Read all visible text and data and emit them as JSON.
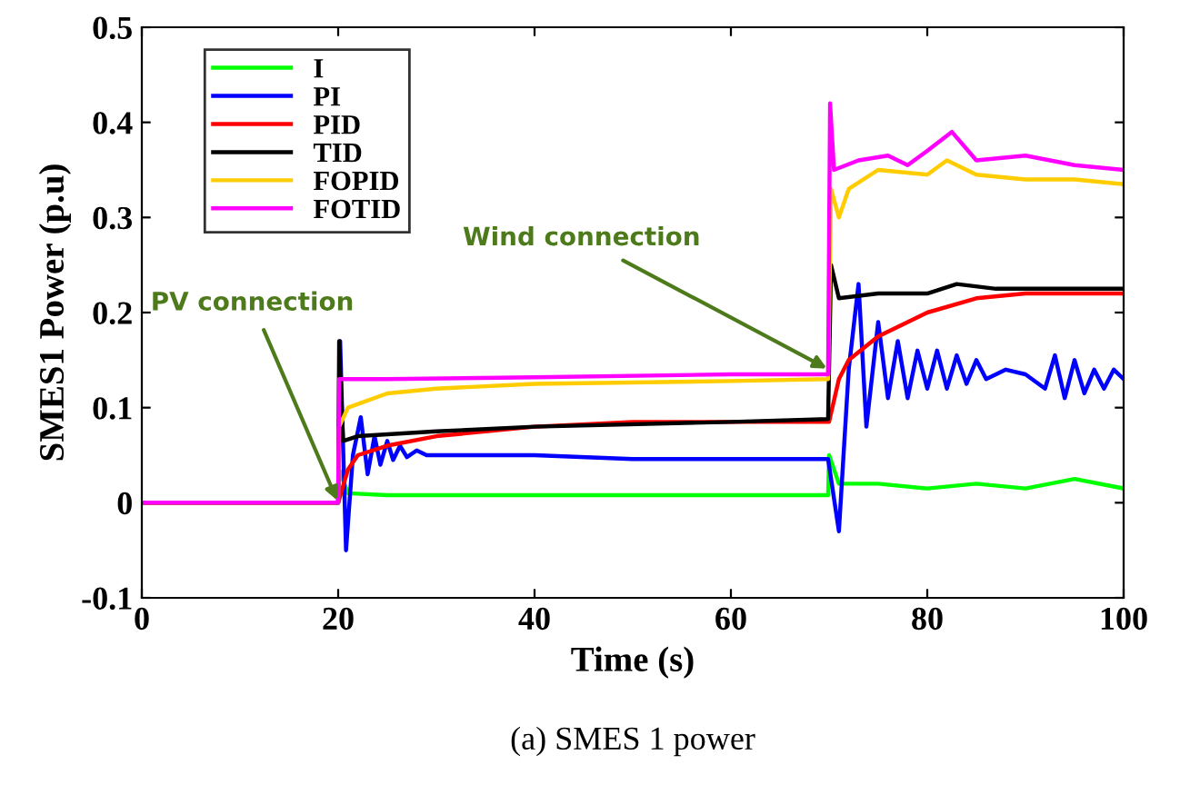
{
  "chart_data": {
    "type": "line",
    "xlabel": "Time (s)",
    "ylabel": "SMES1 Power (p.u)",
    "xlim": [
      0,
      100
    ],
    "xticks": [
      0,
      20,
      40,
      60,
      80,
      100
    ],
    "ylim": [
      -0.1,
      0.5
    ],
    "yticks": [
      -0.1,
      0,
      0.1,
      0.2,
      0.3,
      0.4,
      0.5
    ],
    "grid": false,
    "legend": "top left",
    "marker": "none",
    "line_style": "solid",
    "annotations": [
      {
        "text": "PV connection",
        "x": 20,
        "y": 0
      },
      {
        "text": "Wind connection",
        "x": 70,
        "y": 0.14
      },
      "(a) SMES 1 power"
    ],
    "series": [
      {
        "name": "I",
        "color": "#00ff00",
        "x": [
          0,
          20,
          20.1,
          21,
          25,
          40,
          60,
          69.9,
          70,
          71,
          75,
          80,
          85,
          90,
          95,
          100
        ],
        "values": [
          0,
          0,
          0.035,
          0.01,
          0.008,
          0.008,
          0.008,
          0.008,
          0.05,
          0.02,
          0.02,
          0.015,
          0.02,
          0.015,
          0.025,
          0.015
        ]
      },
      {
        "name": "PI",
        "color": "#0000ff",
        "x": [
          0,
          20,
          20.2,
          20.8,
          21.5,
          22.3,
          23,
          23.7,
          24.3,
          25,
          25.6,
          26.3,
          27,
          28,
          29,
          30,
          40,
          50,
          69.9,
          71,
          72,
          73,
          73.8,
          75,
          76,
          77,
          78,
          79,
          80,
          81,
          82,
          83,
          84,
          85,
          86,
          88,
          90,
          92,
          93,
          94,
          95,
          96,
          97,
          98,
          99,
          100
        ],
        "values": [
          0,
          0,
          0.17,
          -0.05,
          0.05,
          0.09,
          0.03,
          0.07,
          0.04,
          0.065,
          0.045,
          0.06,
          0.048,
          0.055,
          0.05,
          0.05,
          0.05,
          0.046,
          0.046,
          -0.03,
          0.14,
          0.23,
          0.08,
          0.19,
          0.11,
          0.17,
          0.11,
          0.16,
          0.12,
          0.16,
          0.12,
          0.155,
          0.125,
          0.15,
          0.13,
          0.14,
          0.135,
          0.12,
          0.155,
          0.11,
          0.15,
          0.115,
          0.14,
          0.12,
          0.14,
          0.13
        ]
      },
      {
        "name": "PID",
        "color": "#ff0000",
        "x": [
          0,
          20,
          21,
          22,
          25,
          30,
          40,
          50,
          69.9,
          70,
          71,
          72,
          75,
          80,
          85,
          90,
          95,
          100
        ],
        "values": [
          0,
          0,
          0.035,
          0.05,
          0.06,
          0.07,
          0.08,
          0.085,
          0.085,
          0.085,
          0.13,
          0.15,
          0.175,
          0.2,
          0.215,
          0.22,
          0.22,
          0.22
        ]
      },
      {
        "name": "TID",
        "color": "#000000",
        "x": [
          0,
          20,
          20.1,
          20.5,
          22,
          30,
          40,
          60,
          69.9,
          70.2,
          71,
          75,
          80,
          83,
          87,
          90,
          95,
          100
        ],
        "values": [
          0,
          0,
          0.17,
          0.065,
          0.07,
          0.075,
          0.08,
          0.085,
          0.088,
          0.25,
          0.215,
          0.22,
          0.22,
          0.23,
          0.225,
          0.225,
          0.225,
          0.225
        ]
      },
      {
        "name": "FOPID",
        "color": "#ffcc00",
        "x": [
          0,
          20,
          20.1,
          21,
          25,
          30,
          40,
          60,
          69.9,
          70.2,
          71,
          72,
          75,
          80,
          82,
          85,
          90,
          95,
          100
        ],
        "values": [
          0,
          0,
          0.08,
          0.1,
          0.115,
          0.12,
          0.125,
          0.128,
          0.13,
          0.33,
          0.3,
          0.33,
          0.35,
          0.345,
          0.36,
          0.345,
          0.34,
          0.34,
          0.335
        ]
      },
      {
        "name": "FOTID",
        "color": "#ff00ff",
        "x": [
          0,
          20,
          20.1,
          25,
          40,
          60,
          69.9,
          70.1,
          70.5,
          73,
          76,
          78,
          80,
          82.5,
          85,
          90,
          95,
          100
        ],
        "values": [
          0,
          0,
          0.13,
          0.13,
          0.132,
          0.135,
          0.135,
          0.42,
          0.35,
          0.36,
          0.365,
          0.355,
          0.37,
          0.39,
          0.36,
          0.365,
          0.355,
          0.35
        ]
      }
    ]
  }
}
